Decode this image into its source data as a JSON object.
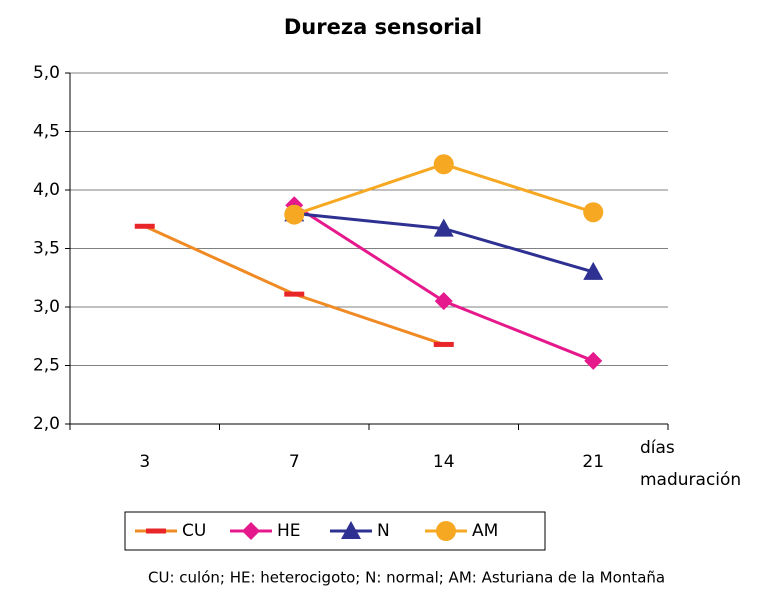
{
  "chart_data": {
    "type": "line",
    "title": "Dureza sensorial",
    "categories": [
      "3",
      "7",
      "14",
      "21"
    ],
    "xlabel_lines": [
      "días",
      "maduración"
    ],
    "ylim": [
      2,
      5
    ],
    "yticks": [
      {
        "value": 2,
        "label": "2,0"
      },
      {
        "value": 2.5,
        "label": "2,5"
      },
      {
        "value": 3,
        "label": "3,0"
      },
      {
        "value": 3.5,
        "label": "3,5"
      },
      {
        "value": 4,
        "label": "4,0"
      },
      {
        "value": 4.5,
        "label": "4,5"
      },
      {
        "value": 5,
        "label": "5,0"
      }
    ],
    "grid": true,
    "legend": "bottom",
    "series": [
      {
        "name": "CU",
        "color": "#F08A24",
        "marker_color": "#E8262A",
        "marker": "dash",
        "values": [
          3.69,
          3.11,
          2.68,
          null
        ]
      },
      {
        "name": "HE",
        "color": "#E6198C",
        "marker_color": "#E6198C",
        "marker": "diamond",
        "values": [
          null,
          3.87,
          3.05,
          2.54
        ]
      },
      {
        "name": "N",
        "color": "#2E3192",
        "marker_color": "#2E3192",
        "marker": "triangle",
        "values": [
          null,
          3.8,
          3.67,
          3.3
        ]
      },
      {
        "name": "AM",
        "color": "#F7A823",
        "marker_color": "#F7A823",
        "marker": "circle",
        "values": [
          null,
          3.79,
          4.22,
          3.81
        ]
      }
    ],
    "footnote": "CU: culón; HE: heterocigoto; N: normal; AM: Asturiana de la Montaña"
  }
}
